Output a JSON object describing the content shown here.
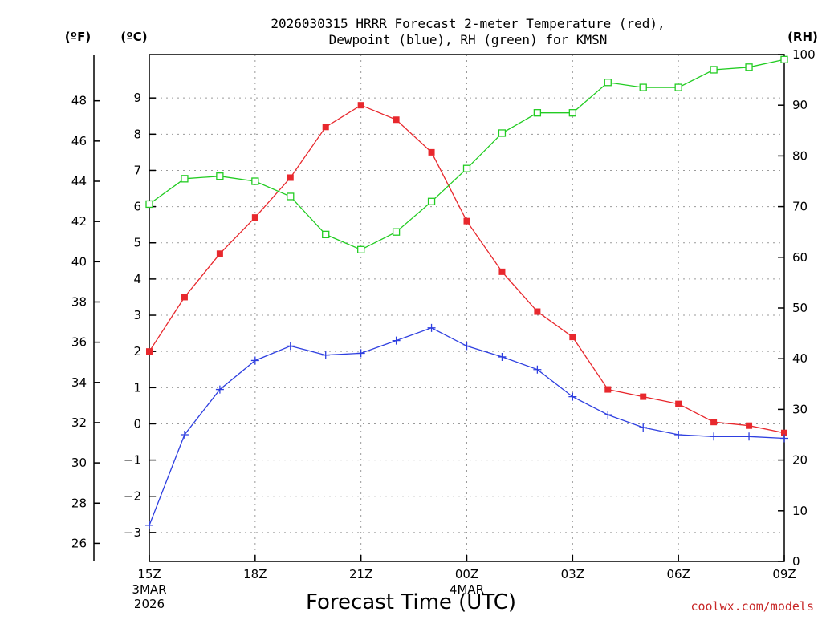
{
  "chart_data": {
    "type": "line",
    "title": [
      "2026030315 HRRR Forecast 2-meter Temperature (red),",
      "Dewpoint (blue), RH (green) for KMSN"
    ],
    "xlabel": "Forecast Time (UTC)",
    "credit": "coolwx.com/models",
    "axes": {
      "left_outer": {
        "unit": "(ºF)",
        "range": [
          25.1,
          50.3
        ],
        "ticks": [
          26,
          28,
          30,
          32,
          34,
          36,
          38,
          40,
          42,
          44,
          46,
          48
        ]
      },
      "left_inner": {
        "unit": "(ºC)",
        "range": [
          -3.8,
          10.2
        ],
        "ticks": [
          -3,
          -2,
          -1,
          0,
          1,
          2,
          3,
          4,
          5,
          6,
          7,
          8,
          9
        ]
      },
      "right": {
        "unit": "(RH)",
        "range": [
          0,
          100
        ],
        "ticks": [
          0,
          10,
          20,
          30,
          40,
          50,
          60,
          70,
          80,
          90,
          100
        ]
      }
    },
    "x": [
      0,
      1,
      2,
      3,
      4,
      5,
      6,
      7,
      8,
      9,
      10,
      11,
      12,
      13,
      14,
      15,
      16,
      17,
      18
    ],
    "x_ticks": [
      {
        "x": 0,
        "label": "15Z",
        "date": "3MAR",
        "year": "2026"
      },
      {
        "x": 3,
        "label": "18Z"
      },
      {
        "x": 6,
        "label": "21Z"
      },
      {
        "x": 9,
        "label": "00Z",
        "date": "4MAR"
      },
      {
        "x": 12,
        "label": "03Z"
      },
      {
        "x": 15,
        "label": "06Z"
      },
      {
        "x": 18,
        "label": "09Z"
      }
    ],
    "grid": true,
    "series": [
      {
        "name": "Temperature",
        "axis": "left_inner",
        "color": "#e8282d",
        "marker": "filled-square",
        "values": [
          2.0,
          3.5,
          4.7,
          5.7,
          6.8,
          8.2,
          8.8,
          8.4,
          7.5,
          5.6,
          4.2,
          3.1,
          2.4,
          0.95,
          0.75,
          0.55,
          0.05,
          -0.05,
          -0.25
        ]
      },
      {
        "name": "Dewpoint",
        "axis": "left_inner",
        "color": "#2e3fe0",
        "marker": "plus",
        "values": [
          -2.8,
          -0.3,
          0.95,
          1.75,
          2.15,
          1.9,
          1.95,
          2.3,
          2.65,
          2.15,
          1.85,
          1.5,
          0.75,
          0.25,
          -0.1,
          -0.3,
          -0.35,
          -0.35,
          -0.4
        ]
      },
      {
        "name": "RH",
        "axis": "right",
        "color": "#22cc22",
        "marker": "open-square",
        "values": [
          70.5,
          75.5,
          76.0,
          75.0,
          72.0,
          64.5,
          61.5,
          65.0,
          71.0,
          77.5,
          84.5,
          88.5,
          88.5,
          94.5,
          93.5,
          93.5,
          97.0,
          97.5,
          99.0
        ]
      }
    ]
  }
}
